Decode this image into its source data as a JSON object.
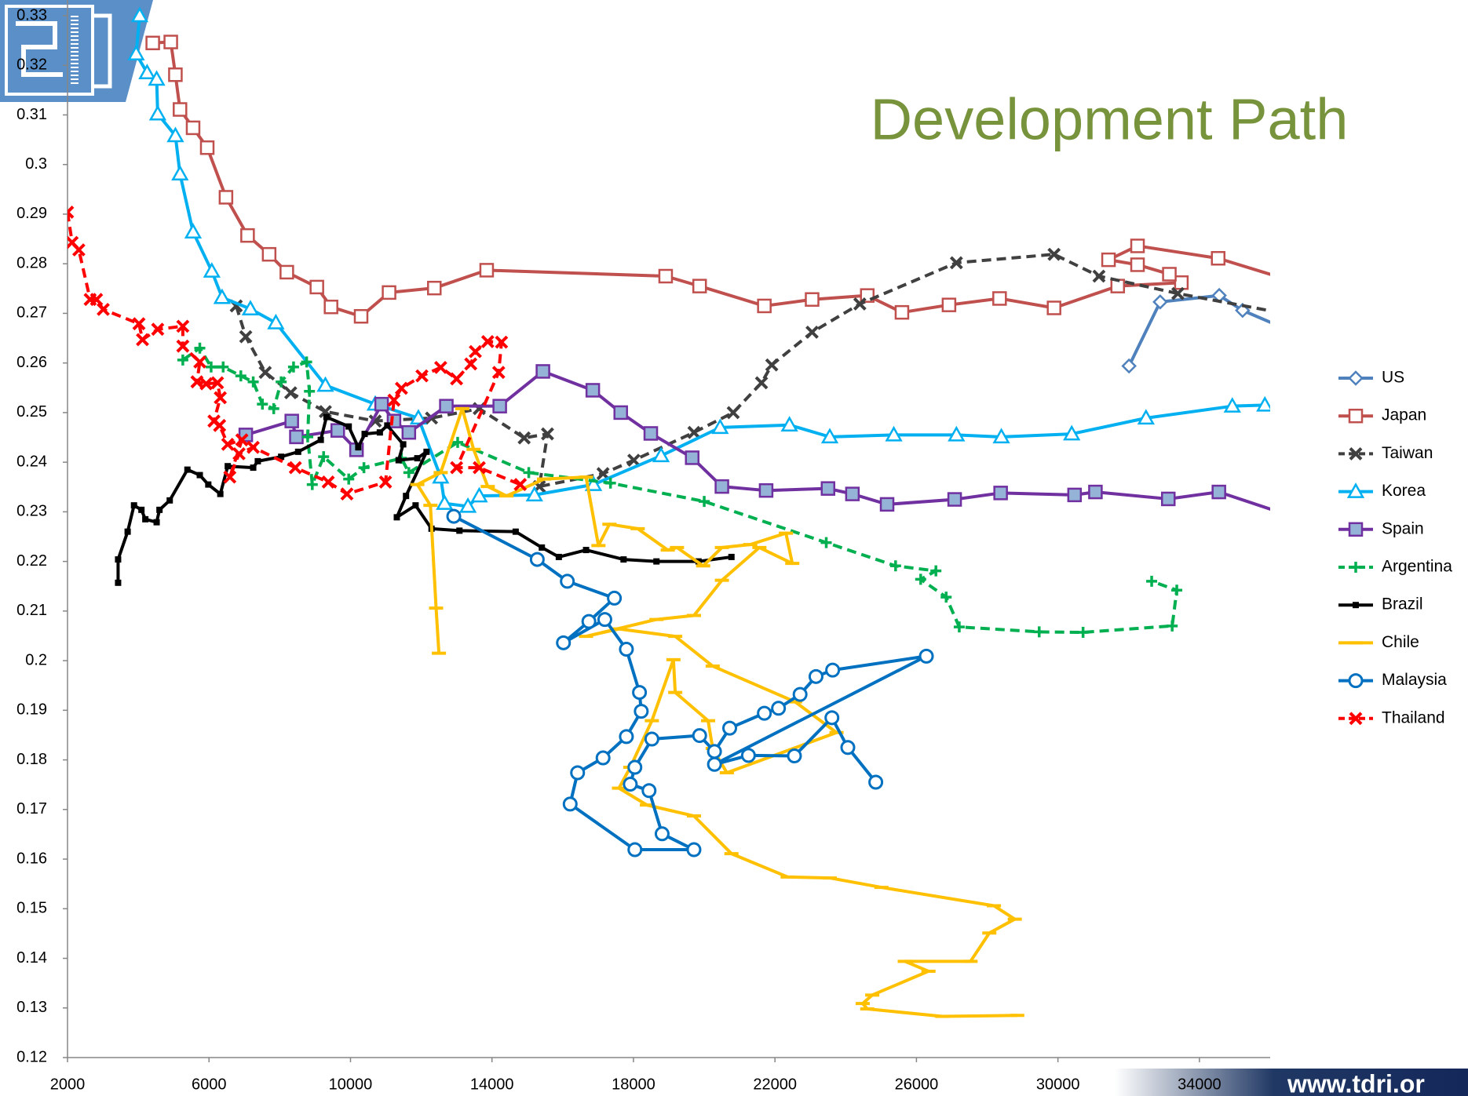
{
  "chart_data": {
    "type": "line",
    "title": "Development Path",
    "xlim": [
      2000,
      36000
    ],
    "xticks": [
      2000,
      6000,
      10000,
      14000,
      18000,
      22000,
      26000,
      30000,
      34000
    ],
    "ylim": [
      0.12,
      0.33
    ],
    "yticks": [
      0.12,
      0.13,
      0.14,
      0.15,
      0.16,
      0.17,
      0.18,
      0.19,
      0.2,
      0.21,
      0.22,
      0.23,
      0.24,
      0.25,
      0.26,
      0.27,
      0.28,
      0.29,
      0.3,
      0.31,
      0.32,
      0.33
    ],
    "grid": false,
    "legend": "right",
    "series": [
      {
        "name": "US",
        "color": "#4f81bd",
        "marker": "diamond",
        "x": [
          32010,
          32890,
          34560,
          35220,
          36400
        ],
        "values": [
          0.2594,
          0.2723,
          0.2736,
          0.2706,
          0.267
        ]
      },
      {
        "name": "Japan",
        "color": "#c0504d",
        "marker": "square",
        "x": [
          4410,
          4920,
          5050,
          5180,
          5550,
          5950,
          6480,
          7090,
          7700,
          8200,
          9050,
          9450,
          10300,
          11090,
          12370,
          13850,
          18910,
          19870,
          21700,
          23050,
          24610,
          25590,
          26920,
          28350,
          29890,
          31690,
          33490,
          33150,
          32250,
          31430,
          32250,
          34530,
          36400
        ],
        "values": [
          0.3245,
          0.3247,
          0.3181,
          0.3111,
          0.3074,
          0.3034,
          0.2934,
          0.2857,
          0.2819,
          0.2783,
          0.2753,
          0.2713,
          0.2694,
          0.2742,
          0.2751,
          0.2787,
          0.2775,
          0.2755,
          0.2715,
          0.2728,
          0.2736,
          0.2702,
          0.2717,
          0.273,
          0.2711,
          0.2755,
          0.2762,
          0.2779,
          0.2798,
          0.2808,
          0.2836,
          0.2811,
          0.277
        ]
      },
      {
        "name": "Taiwan",
        "color": "#404040",
        "marker": "x",
        "dashed": true,
        "x": [
          6770,
          7040,
          7590,
          8310,
          9290,
          10700,
          12290,
          13640,
          14910,
          15570,
          15340,
          17140,
          18010,
          19710,
          20820,
          21620,
          21910,
          23050,
          24400,
          27130,
          29890,
          31160,
          33390,
          36400
        ],
        "values": [
          0.2715,
          0.2653,
          0.2581,
          0.254,
          0.2502,
          0.2483,
          0.2489,
          0.2508,
          0.2449,
          0.2457,
          0.2351,
          0.2377,
          0.2404,
          0.246,
          0.25,
          0.256,
          0.2596,
          0.2662,
          0.2719,
          0.2802,
          0.2819,
          0.2775,
          0.274,
          0.27
        ]
      },
      {
        "name": "Korea",
        "color": "#00b0f0",
        "marker": "triangle",
        "x": [
          4040,
          3940,
          4250,
          4520,
          4550,
          5050,
          5180,
          5550,
          6080,
          6370,
          7170,
          7890,
          9290,
          10700,
          11920,
          12550,
          12660,
          13320,
          13640,
          15200,
          16870,
          18780,
          20450,
          22410,
          23550,
          25360,
          27130,
          28400,
          30390,
          32490,
          34930,
          35850
        ],
        "values": [
          0.33,
          0.3223,
          0.3185,
          0.3172,
          0.3102,
          0.3058,
          0.2981,
          0.2864,
          0.2785,
          0.2732,
          0.2709,
          0.2681,
          0.2555,
          0.2517,
          0.2489,
          0.237,
          0.2317,
          0.2311,
          0.2332,
          0.2334,
          0.2355,
          0.2413,
          0.247,
          0.2475,
          0.2451,
          0.2455,
          0.2455,
          0.2451,
          0.2457,
          0.2489,
          0.2513,
          0.2515
        ]
      },
      {
        "name": "Spain",
        "color": "#7030a0",
        "marker": "square",
        "marker_fill": "#95b3d7",
        "x": [
          7040,
          8340,
          8470,
          9640,
          10170,
          10880,
          11230,
          11650,
          12710,
          14220,
          15440,
          16850,
          17640,
          18490,
          19660,
          20500,
          21750,
          23500,
          24190,
          25170,
          27080,
          28380,
          30470,
          31060,
          33120,
          34550,
          36400
        ],
        "values": [
          0.2455,
          0.2483,
          0.2451,
          0.2464,
          0.2425,
          0.2517,
          0.2483,
          0.246,
          0.2513,
          0.2513,
          0.2583,
          0.2545,
          0.25,
          0.2458,
          0.2409,
          0.2351,
          0.2343,
          0.2347,
          0.2336,
          0.2315,
          0.2325,
          0.2338,
          0.2334,
          0.234,
          0.2326,
          0.234,
          0.2296
        ]
      },
      {
        "name": "Argentina",
        "color": "#00b050",
        "marker": "plus",
        "dashed": true,
        "x": [
          5260,
          5740,
          6060,
          6400,
          6900,
          7250,
          7510,
          7830,
          8040,
          8390,
          8760,
          8840,
          8790,
          8920,
          9240,
          9950,
          10380,
          11440,
          11650,
          13030,
          15040,
          17350,
          20000,
          23450,
          25410,
          26550,
          26120,
          26840,
          27210,
          29470,
          30710,
          33230,
          33360,
          32650
        ],
        "values": [
          0.2606,
          0.263,
          0.2592,
          0.2592,
          0.2574,
          0.2562,
          0.2517,
          0.2508,
          0.2562,
          0.2592,
          0.2602,
          0.2543,
          0.2451,
          0.2355,
          0.2411,
          0.2366,
          0.2389,
          0.2408,
          0.2379,
          0.244,
          0.2379,
          0.2358,
          0.2321,
          0.2238,
          0.2191,
          0.2181,
          0.2164,
          0.2128,
          0.2068,
          0.2058,
          0.2057,
          0.207,
          0.2142,
          0.216
        ]
      },
      {
        "name": "Brazil",
        "color": "#000000",
        "marker": "small-square",
        "x": [
          3430,
          3430,
          3700,
          3880,
          4090,
          4200,
          4520,
          4600,
          4890,
          5390,
          5740,
          5980,
          6320,
          6530,
          7250,
          7380,
          8040,
          8520,
          9160,
          9320,
          9950,
          10220,
          10400,
          10830,
          11040,
          11490,
          11360,
          11890,
          12150,
          11570,
          11310,
          11840,
          12290,
          13080,
          14670,
          15410,
          15890,
          16660,
          17720,
          18650,
          19840,
          20770
        ],
        "values": [
          0.2157,
          0.2204,
          0.226,
          0.2313,
          0.2304,
          0.2285,
          0.2279,
          0.2304,
          0.2323,
          0.2385,
          0.2374,
          0.2355,
          0.2336,
          0.2392,
          0.2389,
          0.2402,
          0.2411,
          0.2421,
          0.2445,
          0.2491,
          0.2472,
          0.243,
          0.2457,
          0.246,
          0.2474,
          0.2436,
          0.2404,
          0.2408,
          0.2421,
          0.2332,
          0.2289,
          0.2313,
          0.2266,
          0.2262,
          0.226,
          0.2228,
          0.2209,
          0.2223,
          0.2204,
          0.22,
          0.22,
          0.2209
        ]
      },
      {
        "name": "Chile",
        "color": "#ffc000",
        "marker": "dash",
        "x": [
          12500,
          12420,
          12260,
          11890,
          12550,
          13160,
          13480,
          13880,
          14410,
          15470,
          16660,
          17010,
          17320,
          18120,
          18970,
          19230,
          19970,
          20500,
          21300,
          22310,
          22490,
          21560,
          20500,
          19710,
          18650,
          16660,
          17590,
          19180,
          20240,
          22570,
          23740,
          20640,
          20240,
          20110,
          19180,
          19130,
          18520,
          17910,
          17590,
          18380,
          19710,
          20770,
          22360,
          23550,
          25010,
          28190,
          28780,
          28060,
          27530,
          25670,
          26340,
          24750,
          24480,
          24610,
          26730,
          28850
        ],
        "values": [
          0.2015,
          0.2106,
          0.2313,
          0.2355,
          0.2379,
          0.2508,
          0.2426,
          0.2351,
          0.2332,
          0.2366,
          0.237,
          0.2232,
          0.2275,
          0.2266,
          0.2223,
          0.2228,
          0.2191,
          0.2228,
          0.2234,
          0.2257,
          0.2196,
          0.2228,
          0.2162,
          0.2091,
          0.2083,
          0.2049,
          0.2064,
          0.2049,
          0.1989,
          0.1917,
          0.1855,
          0.1774,
          0.1823,
          0.1879,
          0.1936,
          0.2002,
          0.1879,
          0.1785,
          0.1743,
          0.1709,
          0.1687,
          0.1611,
          0.1564,
          0.1562,
          0.1543,
          0.1506,
          0.1479,
          0.1451,
          0.1394,
          0.1394,
          0.1374,
          0.1326,
          0.1309,
          0.1298,
          0.1283,
          0.1285
        ]
      },
      {
        "name": "Malaysia",
        "color": "#0070c0",
        "marker": "circle",
        "x": [
          12920,
          15280,
          16130,
          17460,
          16740,
          16020,
          17190,
          17800,
          18170,
          18220,
          17800,
          17140,
          16420,
          16210,
          18040,
          19710,
          18810,
          18440,
          17910,
          18040,
          18520,
          19870,
          20290,
          20720,
          21700,
          22100,
          22710,
          23160,
          23630,
          26280,
          20290,
          21250,
          22550,
          23610,
          24060,
          24850
        ],
        "values": [
          0.2291,
          0.2204,
          0.216,
          0.2126,
          0.2079,
          0.2036,
          0.2083,
          0.2023,
          0.1936,
          0.1898,
          0.1847,
          0.1804,
          0.1774,
          0.1711,
          0.1619,
          0.1619,
          0.1651,
          0.1738,
          0.1751,
          0.1785,
          0.1842,
          0.1849,
          0.1817,
          0.1864,
          0.1894,
          0.1904,
          0.1932,
          0.1968,
          0.1981,
          0.2009,
          0.1791,
          0.1809,
          0.1808,
          0.1885,
          0.1825,
          0.1755
        ]
      },
      {
        "name": "Thailand",
        "color": "#ff0000",
        "marker": "x",
        "dashed": true,
        "x": [
          2000,
          2130,
          2320,
          2640,
          2820,
          3010,
          4020,
          4120,
          4550,
          5260,
          5260,
          5740,
          5660,
          5920,
          6240,
          6320,
          6140,
          6300,
          6530,
          6930,
          6590,
          6850,
          7250,
          8440,
          9370,
          9900,
          10990,
          11230,
          11440,
          12020,
          12550,
          13000,
          13400,
          13530,
          13880,
          14270,
          14190,
          13000,
          13640,
          14800
        ],
        "values": [
          0.2904,
          0.2843,
          0.2828,
          0.2728,
          0.2728,
          0.2708,
          0.2679,
          0.2647,
          0.2668,
          0.2674,
          0.2634,
          0.2602,
          0.2562,
          0.2558,
          0.256,
          0.253,
          0.2483,
          0.2474,
          0.2436,
          0.2445,
          0.237,
          0.2417,
          0.243,
          0.2389,
          0.236,
          0.2336,
          0.236,
          0.2525,
          0.2549,
          0.2574,
          0.2591,
          0.2568,
          0.2598,
          0.2623,
          0.2643,
          0.2642,
          0.2581,
          0.2389,
          0.2389,
          0.2355
        ]
      }
    ]
  },
  "footer": "www.tdri.or"
}
